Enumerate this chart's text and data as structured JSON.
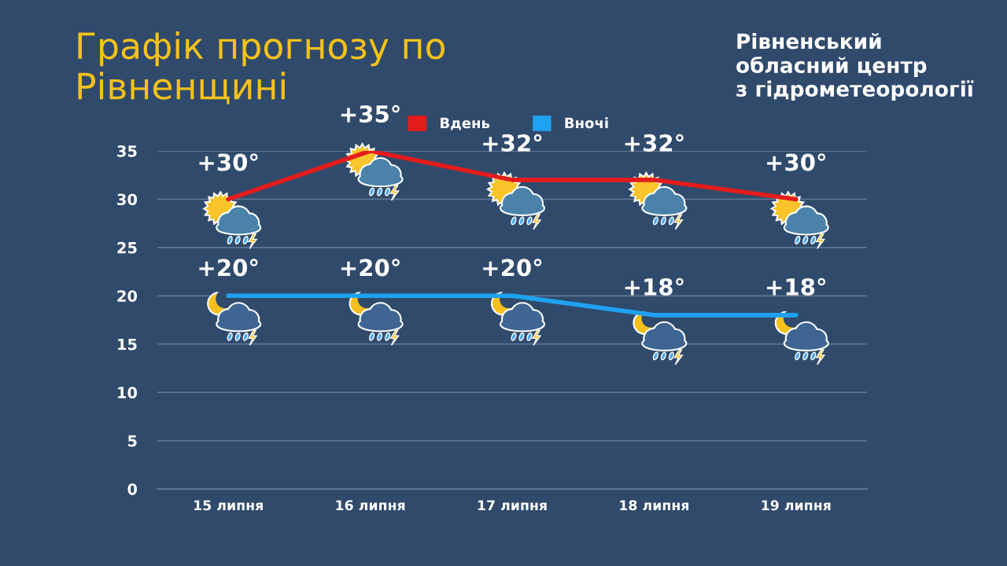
{
  "chart_data": {
    "type": "line",
    "title": "Графік прогнозу по\nРівненщині",
    "categories": [
      "15 липня",
      "16 липня",
      "17 липня",
      "18 липня",
      "19 липня"
    ],
    "series": [
      {
        "name": "Вдень",
        "color": "#e41c1c",
        "values": [
          30,
          35,
          32,
          32,
          30
        ],
        "value_labels": [
          "+30°",
          "+35°",
          "+32°",
          "+32°",
          "+30°"
        ]
      },
      {
        "name": "Вночі",
        "color": "#1ea2f2",
        "values": [
          20,
          20,
          20,
          18,
          18
        ],
        "value_labels": [
          "+20°",
          "+20°",
          "+20°",
          "+18°",
          "+18°"
        ]
      }
    ],
    "ylim": [
      0,
      35
    ],
    "yticks": [
      0,
      5,
      10,
      15,
      20,
      25,
      30,
      35
    ],
    "grid": "y",
    "legend": "top",
    "line_style": "solid",
    "annotations": [
      "Рівненський\nобласний центр\nз гідрометеорології"
    ]
  }
}
